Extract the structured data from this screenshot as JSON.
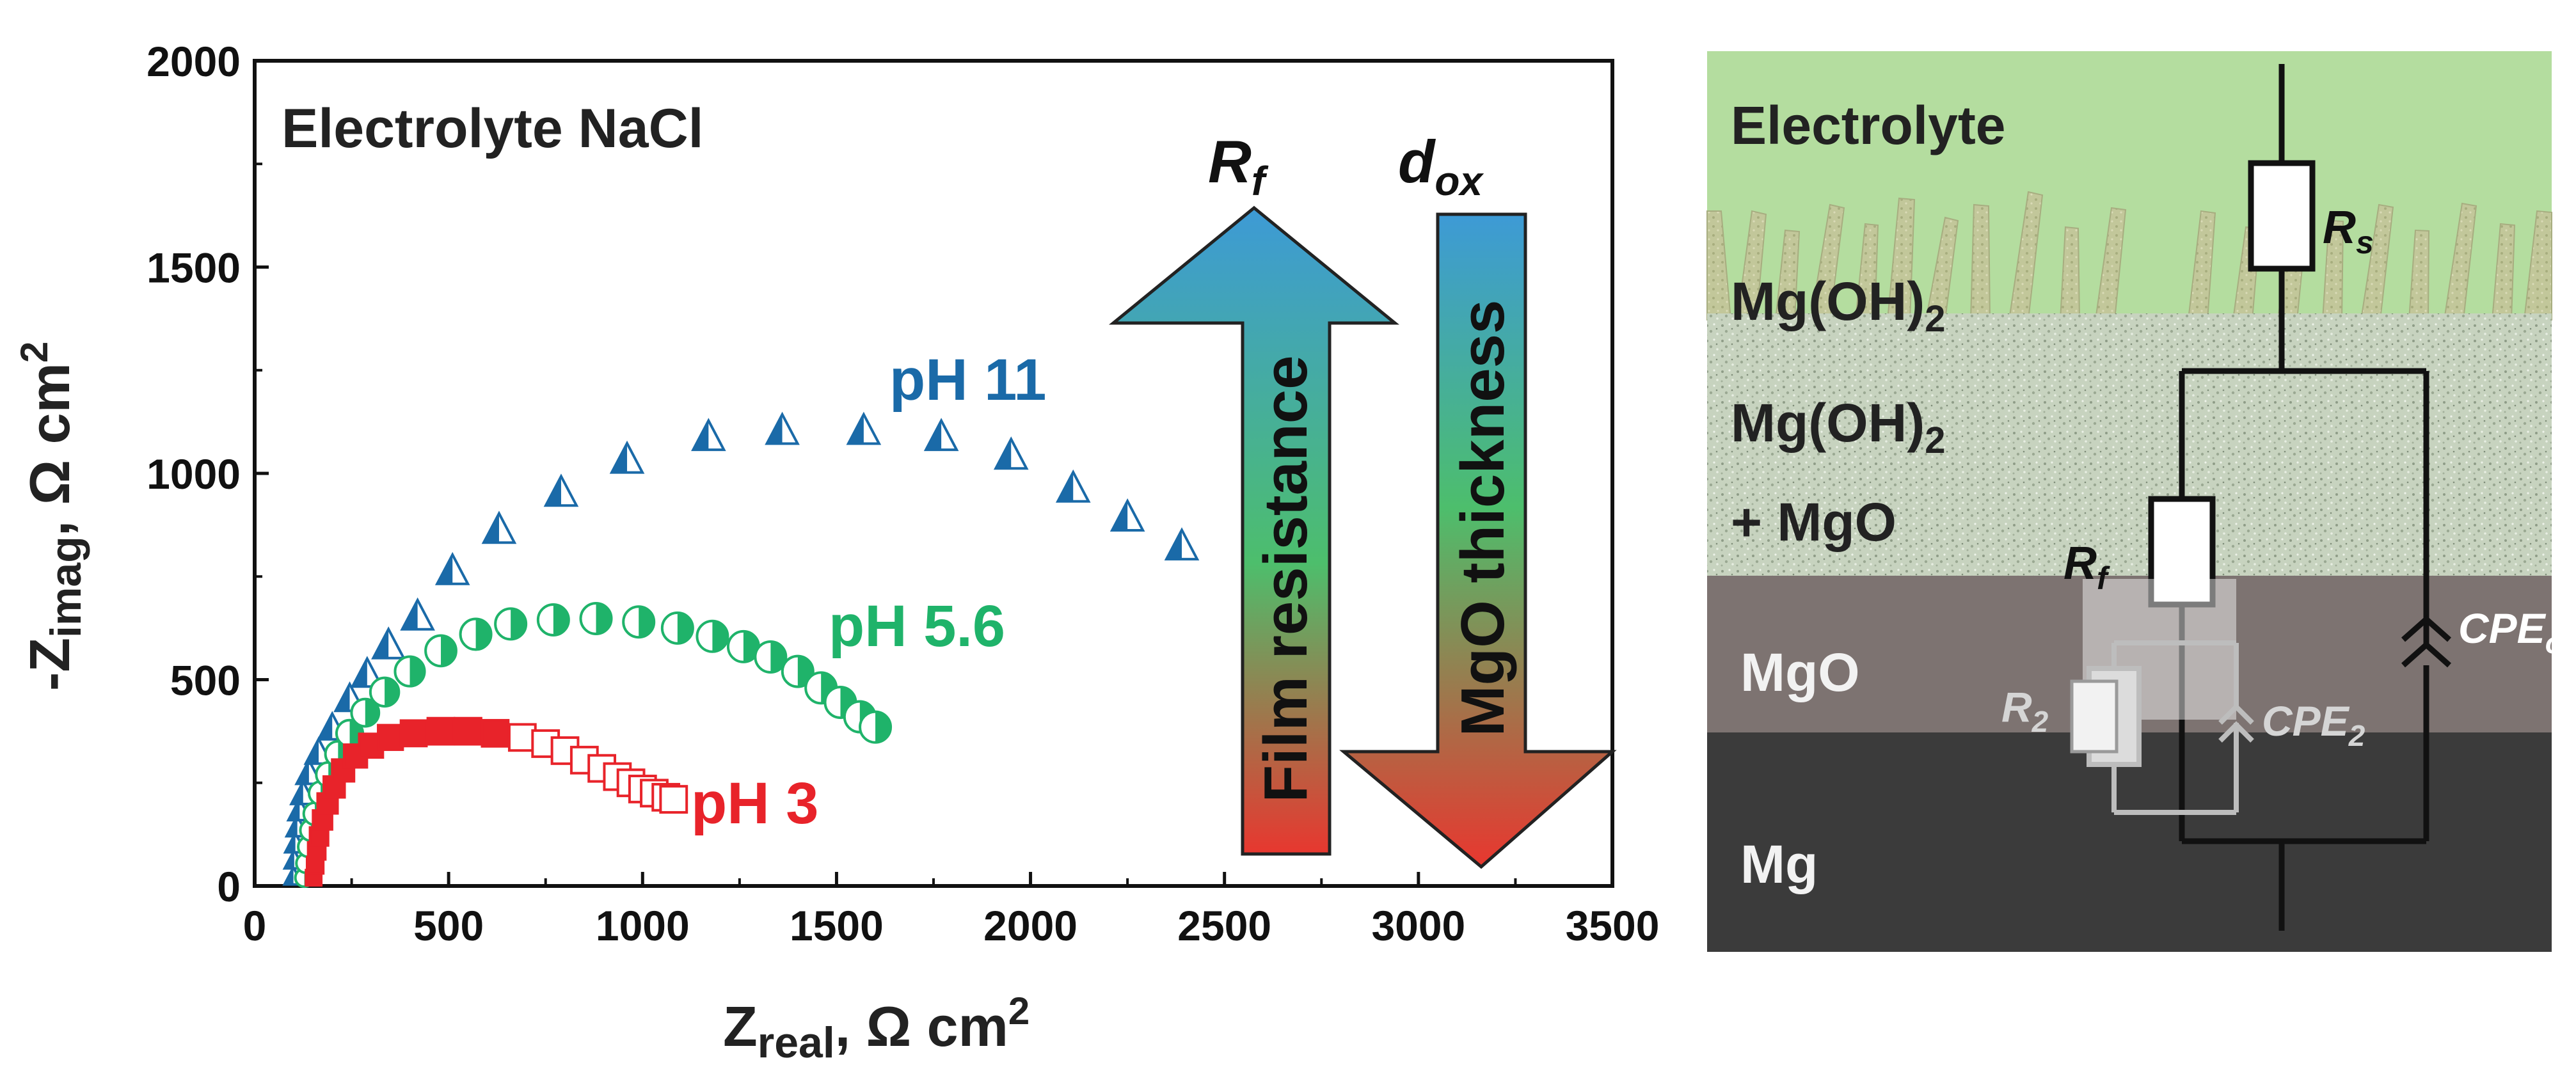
{
  "chart_data": {
    "type": "scatter",
    "title": "Electrolyte NaCl",
    "xlabel_main": "Z",
    "xlabel_sub": "real",
    "xlabel_unit": ", Ω cm",
    "xlabel_sup": "2",
    "ylabel_main": "-Z",
    "ylabel_sub": "imag",
    "ylabel_unit": ", Ω cm",
    "ylabel_sup": "2",
    "xlim": [
      0,
      3500
    ],
    "ylim": [
      0,
      2000
    ],
    "xticks": [
      0,
      500,
      1000,
      1500,
      2000,
      2500,
      3000,
      3500
    ],
    "yticks": [
      0,
      500,
      1000,
      1500,
      2000
    ],
    "series": [
      {
        "name": "pH 11",
        "marker": "triangle",
        "color": "#1a6aa8",
        "points": [
          [
            100,
            20
          ],
          [
            102,
            60
          ],
          [
            105,
            100
          ],
          [
            110,
            140
          ],
          [
            116,
            180
          ],
          [
            125,
            220
          ],
          [
            140,
            270
          ],
          [
            165,
            320
          ],
          [
            200,
            380
          ],
          [
            245,
            450
          ],
          [
            290,
            510
          ],
          [
            345,
            580
          ],
          [
            420,
            650
          ],
          [
            510,
            760
          ],
          [
            630,
            860
          ],
          [
            790,
            950
          ],
          [
            960,
            1030
          ],
          [
            1170,
            1085
          ],
          [
            1360,
            1100
          ],
          [
            1570,
            1100
          ],
          [
            1770,
            1085
          ],
          [
            1950,
            1040
          ],
          [
            2110,
            960
          ],
          [
            2250,
            890
          ],
          [
            2390,
            820
          ]
        ]
      },
      {
        "name": "pH 5.6",
        "marker": "circle",
        "color": "#1fb36a",
        "points": [
          [
            128,
            20
          ],
          [
            132,
            55
          ],
          [
            138,
            95
          ],
          [
            145,
            135
          ],
          [
            155,
            175
          ],
          [
            170,
            225
          ],
          [
            190,
            270
          ],
          [
            215,
            320
          ],
          [
            245,
            370
          ],
          [
            285,
            420
          ],
          [
            335,
            470
          ],
          [
            400,
            520
          ],
          [
            480,
            570
          ],
          [
            570,
            610
          ],
          [
            660,
            635
          ],
          [
            770,
            645
          ],
          [
            880,
            648
          ],
          [
            990,
            640
          ],
          [
            1090,
            625
          ],
          [
            1180,
            605
          ],
          [
            1260,
            580
          ],
          [
            1330,
            555
          ],
          [
            1400,
            520
          ],
          [
            1460,
            480
          ],
          [
            1510,
            445
          ],
          [
            1560,
            410
          ],
          [
            1600,
            385
          ]
        ]
      },
      {
        "name": "pH 3",
        "marker": "square",
        "color": "#e8232a",
        "points": [
          [
            152,
            20
          ],
          [
            156,
            50
          ],
          [
            160,
            85
          ],
          [
            166,
            120
          ],
          [
            175,
            160
          ],
          [
            188,
            200
          ],
          [
            205,
            240
          ],
          [
            228,
            280
          ],
          [
            260,
            315
          ],
          [
            300,
            340
          ],
          [
            350,
            360
          ],
          [
            410,
            370
          ],
          [
            480,
            375
          ],
          [
            550,
            375
          ],
          [
            620,
            370
          ],
          [
            690,
            360
          ],
          [
            750,
            345
          ],
          [
            800,
            328
          ],
          [
            850,
            305
          ],
          [
            895,
            285
          ],
          [
            935,
            265
          ],
          [
            970,
            250
          ],
          [
            1000,
            235
          ],
          [
            1030,
            225
          ],
          [
            1060,
            215
          ],
          [
            1080,
            210
          ]
        ]
      }
    ],
    "annotations": {
      "rf_symbol": "R",
      "rf_sub": "f",
      "dox_symbol": "d",
      "dox_sub": "ox",
      "up_arrow_text": "Film resistance",
      "down_arrow_text": "MgO thickness"
    },
    "colors": {
      "arrow_blue": "#3d9ad6",
      "arrow_red": "#e8372f",
      "arrow_green": "#4dbe6c"
    }
  },
  "diagram": {
    "layers": [
      "Electrolyte",
      "Mg(OH)",
      "Mg(OH)",
      "+ MgO",
      "MgO",
      "Mg"
    ],
    "layer_sub": "2",
    "circuit": {
      "rs": "R",
      "rs_sub": "s",
      "rf": "R",
      "rf_sub": "f",
      "r2": "R",
      "r2_sub": "2",
      "cpe_ox": "CPE",
      "cpe_ox_sub": "ox",
      "cpe2": "CPE",
      "cpe2_sub": "2"
    },
    "colors": {
      "electrolyte": "#b4dd9f",
      "hydroxide": "#c9d5c0",
      "mgo": "#7d7371",
      "mg": "#3b3b3b"
    }
  }
}
